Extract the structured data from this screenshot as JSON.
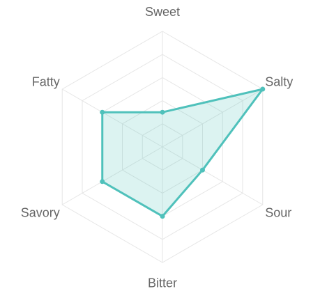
{
  "chart_data": {
    "type": "radar",
    "axes": [
      "Sweet",
      "Salty",
      "Sour",
      "Bitter",
      "Savory",
      "Fatty"
    ],
    "series": [
      {
        "values": [
          3,
          10,
          4,
          6,
          6,
          6
        ]
      }
    ],
    "range": [
      0,
      10
    ],
    "grid_levels": 5,
    "grid": true,
    "legend": "none",
    "colors": {
      "series_line": "#4fc1bb",
      "series_fill": "rgba(79,193,187,0.2)",
      "grid": "#e6e6e6",
      "label": "#666666"
    }
  }
}
